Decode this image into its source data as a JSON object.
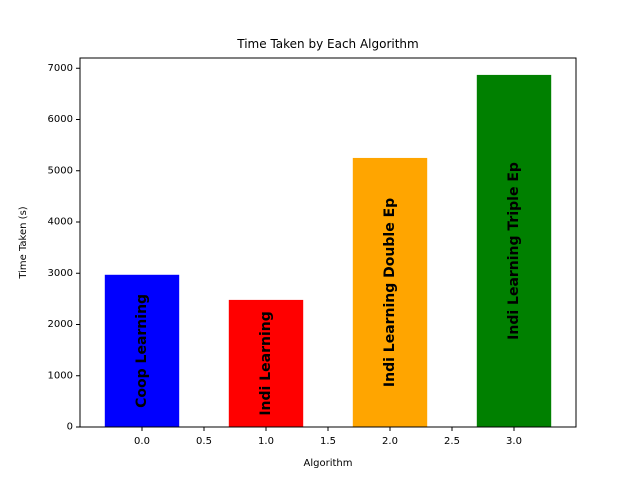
{
  "chart_data": {
    "type": "bar",
    "title": "Time Taken by Each Algorithm",
    "xlabel": "Algorithm",
    "ylabel": "Time Taken (s)",
    "x": [
      0,
      1,
      2,
      3
    ],
    "bar_width": 0.6,
    "values": [
      2970,
      2480,
      5250,
      6870
    ],
    "bar_labels": [
      "Coop Learning",
      "Indi Learning",
      "Indi Learning Double Ep",
      "Indi Learning Triple Ep"
    ],
    "colors": [
      "#0000ff",
      "#ff0000",
      "#ffa500",
      "#008000"
    ],
    "xlim": [
      -0.5,
      3.5
    ],
    "ylim": [
      0,
      7200
    ],
    "xticks": [
      0.0,
      0.5,
      1.0,
      1.5,
      2.0,
      2.5,
      3.0
    ],
    "xtick_labels": [
      "0.0",
      "0.5",
      "1.0",
      "1.5",
      "2.0",
      "2.5",
      "3.0"
    ],
    "yticks": [
      0,
      1000,
      2000,
      3000,
      4000,
      5000,
      6000,
      7000
    ],
    "ytick_labels": [
      "0",
      "1000",
      "2000",
      "3000",
      "4000",
      "5000",
      "6000",
      "7000"
    ],
    "grid": false,
    "legend": "none"
  }
}
